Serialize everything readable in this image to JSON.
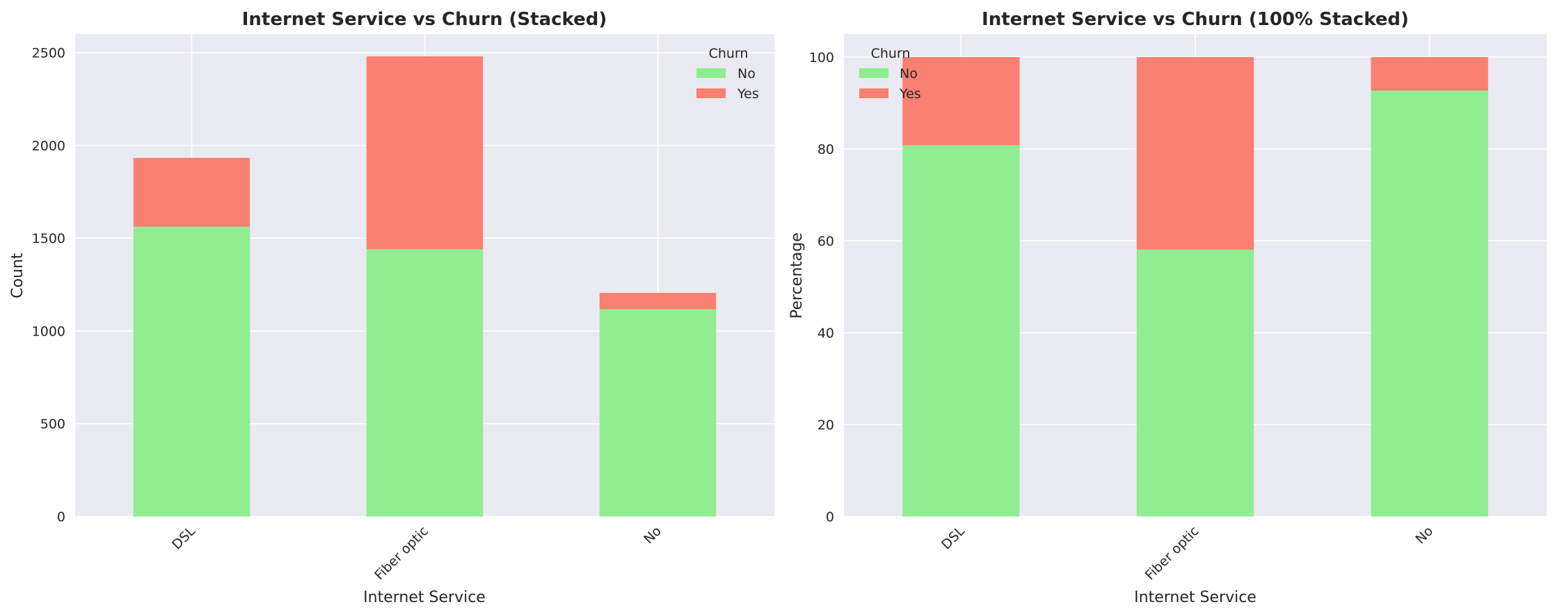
{
  "colors": {
    "plot_bg": "#EAEAF2",
    "grid": "#FFFFFF",
    "no": "#90EE90",
    "yes": "#FA8072"
  },
  "chart_data": [
    {
      "type": "bar",
      "stacked": true,
      "title": "Internet Service vs Churn (Stacked)",
      "xlabel": "Internet Service",
      "ylabel": "Count",
      "categories": [
        "DSL",
        "Fiber optic",
        "No"
      ],
      "series": [
        {
          "name": "No",
          "values": [
            1562,
            1441,
            1117
          ]
        },
        {
          "name": "Yes",
          "values": [
            371,
            1039,
            88
          ]
        }
      ],
      "ylim": [
        0,
        2600
      ],
      "yticks": [
        0,
        500,
        1000,
        1500,
        2000,
        2500
      ],
      "grid": true,
      "legend": {
        "title": "Churn",
        "placement": "top-right"
      }
    },
    {
      "type": "bar",
      "stacked": true,
      "title": "Internet Service vs Churn (100% Stacked)",
      "xlabel": "Internet Service",
      "ylabel": "Percentage",
      "categories": [
        "DSL",
        "Fiber optic",
        "No"
      ],
      "series": [
        {
          "name": "No",
          "values": [
            80.8,
            58.1,
            92.7
          ]
        },
        {
          "name": "Yes",
          "values": [
            19.2,
            41.9,
            7.3
          ]
        }
      ],
      "ylim": [
        0,
        105
      ],
      "yticks": [
        0,
        20,
        40,
        60,
        80,
        100
      ],
      "grid": true,
      "legend": {
        "title": "Churn",
        "placement": "top-left"
      }
    }
  ]
}
